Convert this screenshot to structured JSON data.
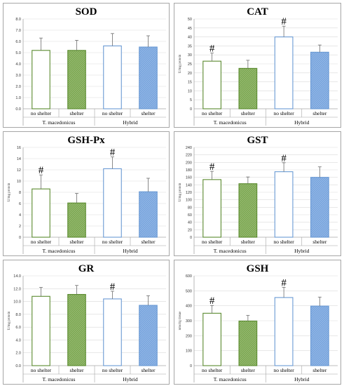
{
  "figure": {
    "groups": [
      "T. macedonicus",
      "Hybrid"
    ],
    "colors": {
      "tmac_outline": "#5a8a2e",
      "tmac_fill": "#7ea953",
      "hybrid_outline": "#6a9ad4",
      "hybrid_fill": "#7aa6de",
      "error_bar": "#6e6e6e",
      "gridline": "#d9d9d9",
      "axis": "#a6a6a6"
    }
  },
  "chart_data": [
    {
      "type": "bar",
      "title": "SOD",
      "ylabel": "",
      "ylim": [
        0,
        8
      ],
      "yticks": [
        "0.0",
        "1.0",
        "2.0",
        "3.0",
        "4.0",
        "5.0",
        "6.0",
        "7.0",
        "8.0"
      ],
      "categories": [
        "no shelter",
        "shelter",
        "no shelter",
        "shelter"
      ],
      "groups": [
        "T. macedonicus",
        "Hybrid"
      ],
      "values": [
        5.2,
        5.2,
        5.6,
        5.5
      ],
      "errors": [
        1.1,
        0.9,
        1.1,
        1.0
      ],
      "sig": [
        "",
        "",
        "",
        ""
      ]
    },
    {
      "type": "bar",
      "title": "CAT",
      "ylabel": "U/mg protein",
      "ylim": [
        0,
        50
      ],
      "yticks": [
        "0",
        "5",
        "10",
        "15",
        "20",
        "25",
        "30",
        "35",
        "40",
        "45",
        "50"
      ],
      "categories": [
        "no shelter",
        "shelter",
        "no shelter",
        "shelter"
      ],
      "groups": [
        "T. macedonicus",
        "Hybrid"
      ],
      "values": [
        26.5,
        22.5,
        40,
        31.5
      ],
      "errors": [
        4.5,
        4.5,
        6,
        4
      ],
      "sig": [
        "#",
        "",
        "#",
        ""
      ]
    },
    {
      "type": "bar",
      "title": "GSH-Px",
      "ylabel": "U/mg protein",
      "ylim": [
        0,
        16
      ],
      "yticks": [
        "0",
        "2",
        "4",
        "6",
        "8",
        "10",
        "12",
        "14",
        "16"
      ],
      "categories": [
        "no shelter",
        "shelter",
        "no shelter",
        "shelter"
      ],
      "groups": [
        "T. macedonicus",
        "Hybrid"
      ],
      "values": [
        8.6,
        6.1,
        12.2,
        8.1
      ],
      "errors": [
        2.5,
        1.7,
        2.1,
        2.4
      ],
      "sig": [
        "#",
        "",
        "#",
        ""
      ]
    },
    {
      "type": "bar",
      "title": "GST",
      "ylabel": "U/mg protein",
      "ylim": [
        0,
        240
      ],
      "yticks": [
        "0",
        "20",
        "40",
        "60",
        "80",
        "100",
        "120",
        "140",
        "160",
        "180",
        "200",
        "220",
        "240"
      ],
      "categories": [
        "no shelter",
        "shelter",
        "no shelter",
        "shelter"
      ],
      "groups": [
        "T. macedonicus",
        "Hybrid"
      ],
      "values": [
        154,
        143,
        175,
        160
      ],
      "errors": [
        22,
        18,
        24,
        28
      ],
      "sig": [
        "#",
        "",
        "#",
        ""
      ]
    },
    {
      "type": "bar",
      "title": "GR",
      "ylabel": "U/mg protein",
      "ylim": [
        0,
        14
      ],
      "yticks": [
        "0.0",
        "2.0",
        "4.0",
        "6.0",
        "8.0",
        "10.0",
        "12.0",
        "14.0"
      ],
      "categories": [
        "no shelter",
        "shelter",
        "no shelter",
        "shelter"
      ],
      "groups": [
        "T. macedonicus",
        "Hybrid"
      ],
      "values": [
        10.8,
        11.1,
        10.4,
        9.4
      ],
      "errors": [
        1.4,
        1.4,
        1.2,
        1.5
      ],
      "sig": [
        "",
        "",
        "#",
        ""
      ]
    },
    {
      "type": "bar",
      "title": "GSH",
      "ylabel": "nmol/g tissue",
      "ylim": [
        0,
        600
      ],
      "yticks": [
        "0",
        "100",
        "200",
        "300",
        "400",
        "500",
        "600"
      ],
      "categories": [
        "no shelter",
        "shelter",
        "no shelter",
        "shelter"
      ],
      "groups": [
        "T. macedonicus",
        "Hybrid"
      ],
      "values": [
        350,
        298,
        455,
        398
      ],
      "errors": [
        52,
        38,
        68,
        60
      ],
      "sig": [
        "#",
        "",
        "#",
        ""
      ]
    }
  ]
}
